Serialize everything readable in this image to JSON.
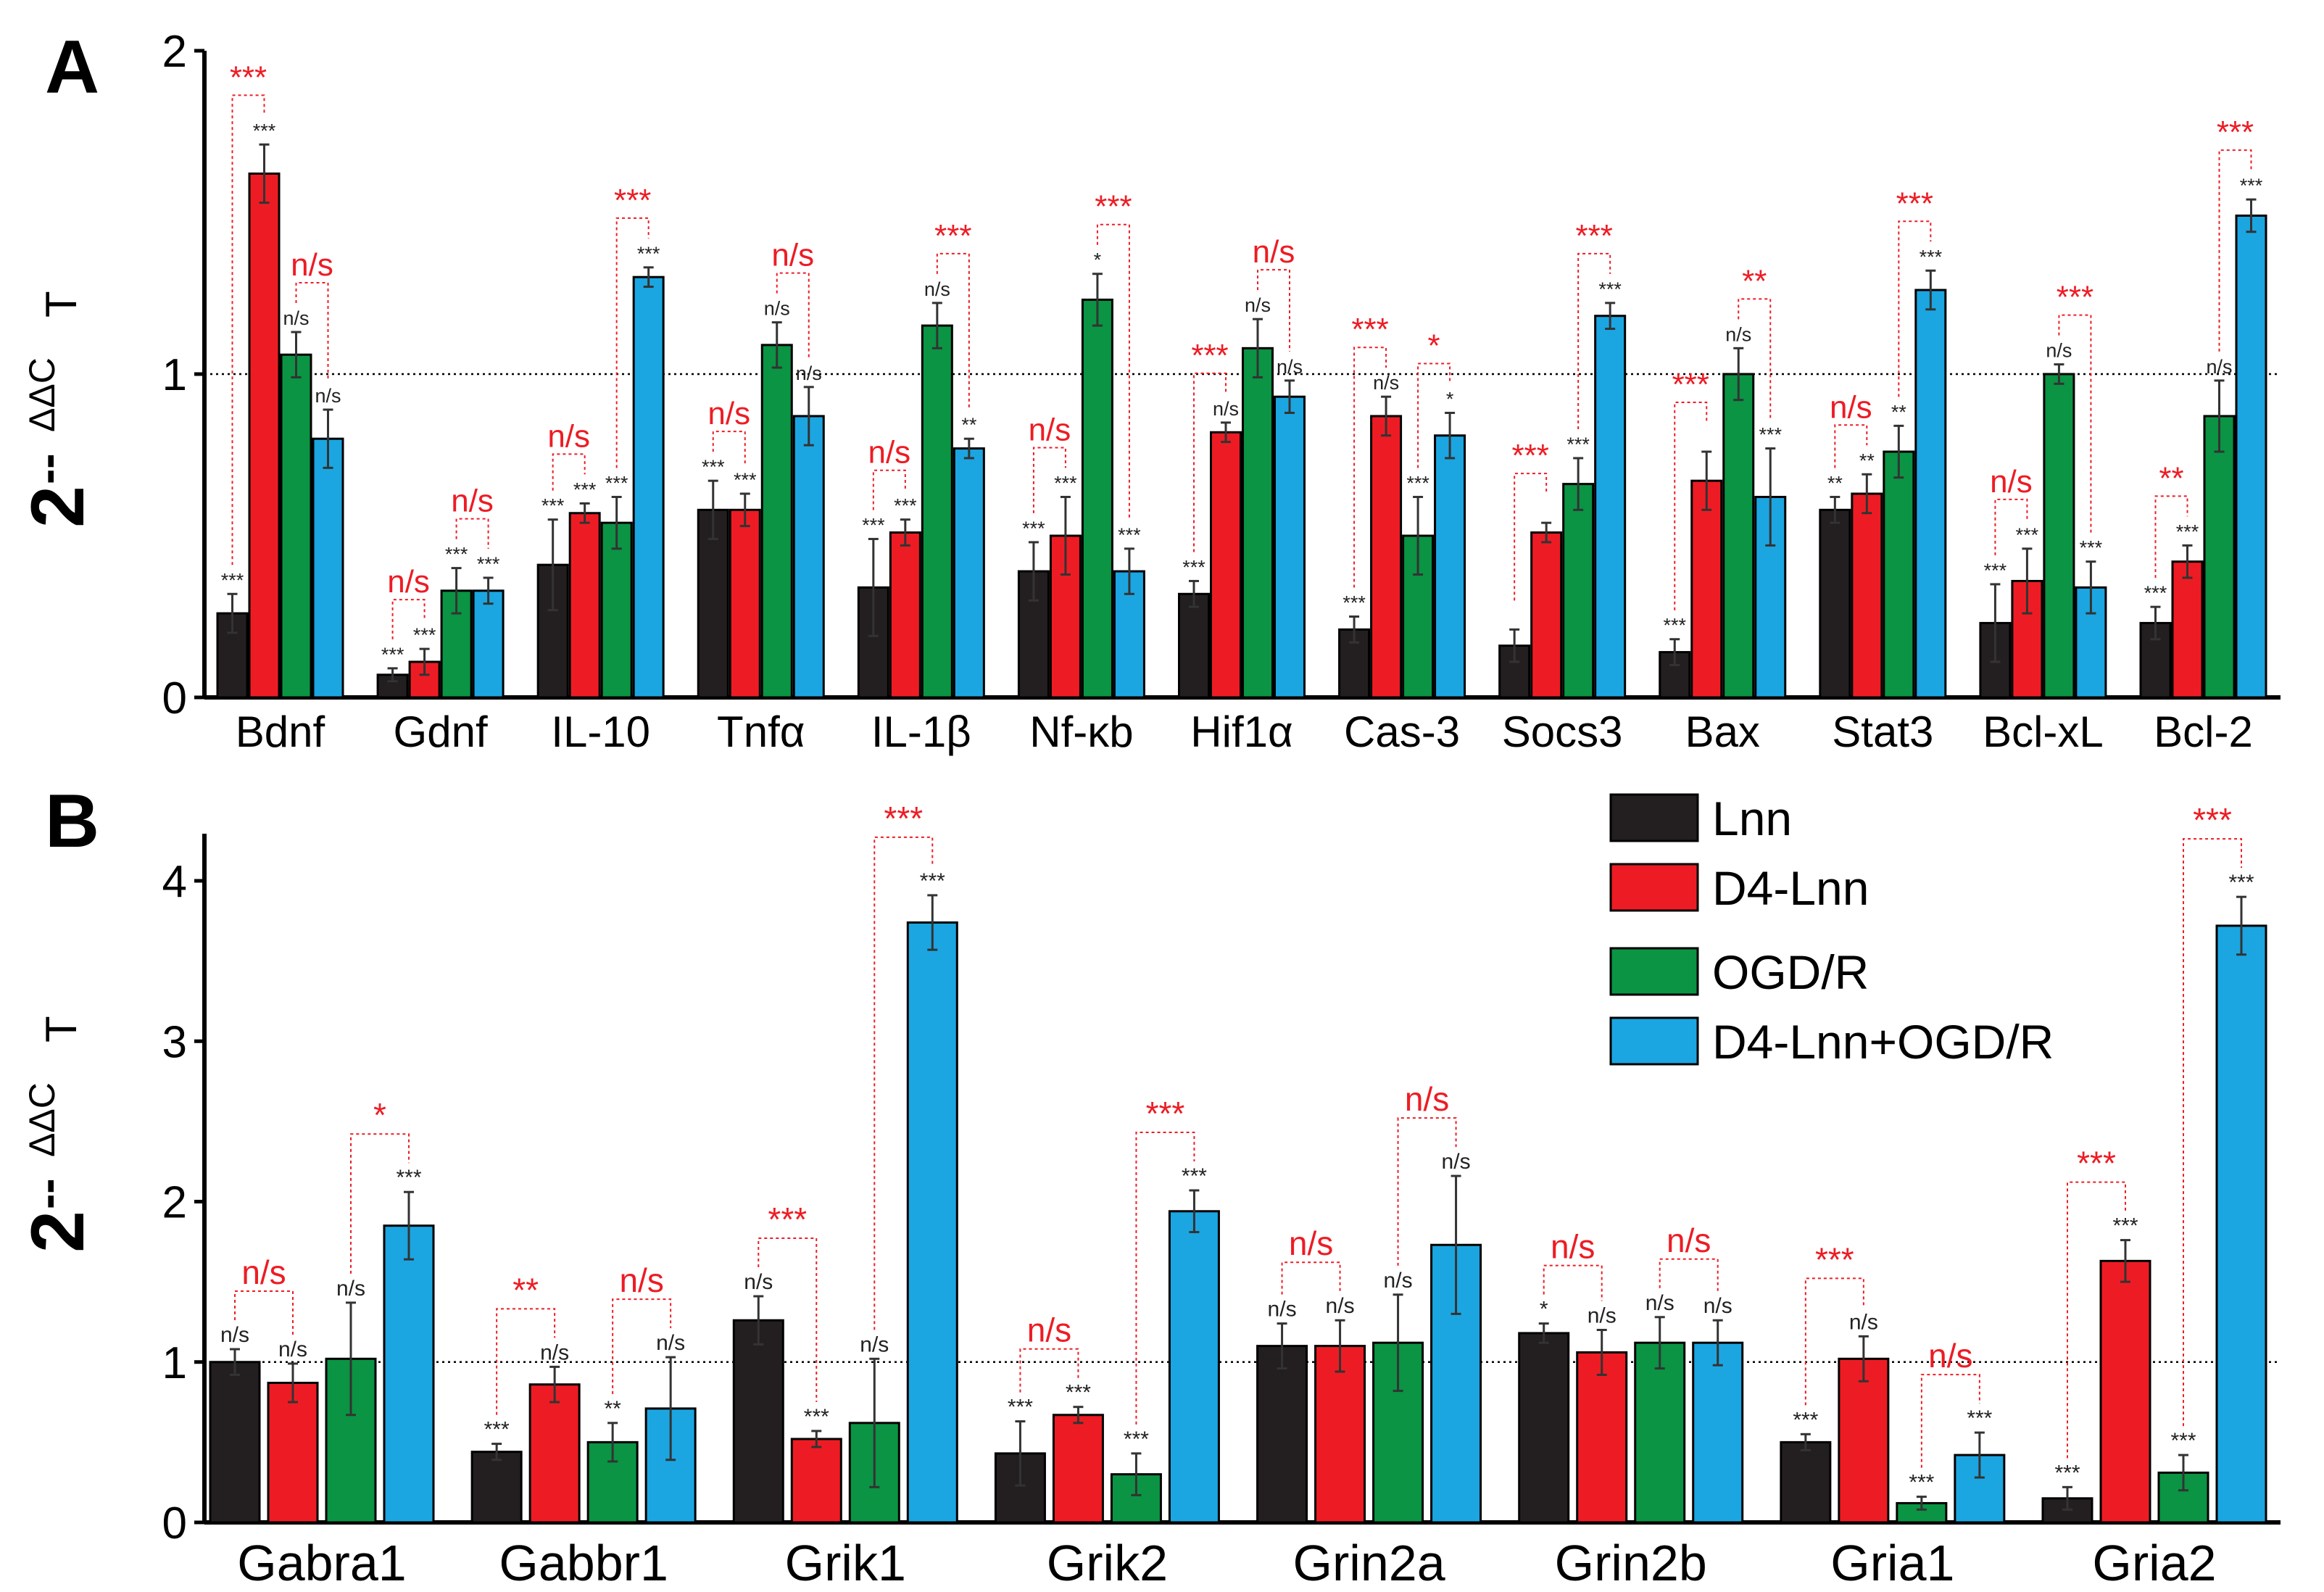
{
  "colors": {
    "Lnn": "#231f20",
    "D4-Lnn": "#ed1c24",
    "OGD/R": "#0a9444",
    "D4-Lnn+OGD/R": "#1ba6e1",
    "annotation": "#ed1c24",
    "axis": "#000000"
  },
  "legend": {
    "placement": "right of panel B, upper",
    "items": [
      {
        "label": "Lnn",
        "color": "#231f20"
      },
      {
        "label": "D4-Lnn",
        "color": "#ed1c24"
      },
      {
        "label": "OGD/R",
        "color": "#0a9444"
      },
      {
        "label": "D4-Lnn+OGD/R",
        "color": "#1ba6e1"
      }
    ]
  },
  "chart_data": [
    {
      "panel_label": "A",
      "type": "bar",
      "ylabel": {
        "base": "2",
        "dashes": "--",
        "sup": "ΔΔC",
        "sub": "T"
      },
      "ylim": [
        0,
        2
      ],
      "yticks": [
        0,
        1,
        2
      ],
      "reference_line": 1,
      "series_names": [
        "Lnn",
        "D4-Lnn",
        "OGD/R",
        "D4-Lnn+OGD/R"
      ],
      "groups": [
        {
          "name": "Bdnf",
          "values": [
            0.26,
            1.62,
            1.06,
            0.8
          ],
          "errors": [
            0.06,
            0.09,
            0.07,
            0.09
          ],
          "stars": [
            "***",
            "***",
            "n/s",
            "n/s"
          ],
          "brackets": [
            {
              "from": 0,
              "to": 1,
              "label": "***"
            },
            {
              "from": 2,
              "to": 3,
              "label": "n/s"
            }
          ]
        },
        {
          "name": "Gdnf",
          "values": [
            0.07,
            0.11,
            0.33,
            0.33
          ],
          "errors": [
            0.02,
            0.04,
            0.07,
            0.04
          ],
          "stars": [
            "***",
            "***",
            "***",
            "***"
          ],
          "brackets": [
            {
              "from": 0,
              "to": 1,
              "label": "n/s"
            },
            {
              "from": 2,
              "to": 3,
              "label": "n/s"
            }
          ]
        },
        {
          "name": "IL-10",
          "values": [
            0.41,
            0.57,
            0.54,
            1.3
          ],
          "errors": [
            0.14,
            0.03,
            0.08,
            0.03
          ],
          "stars": [
            "***",
            "***",
            "***",
            "***"
          ],
          "brackets": [
            {
              "from": 0,
              "to": 1,
              "label": "n/s"
            },
            {
              "from": 2,
              "to": 3,
              "label": "***"
            }
          ]
        },
        {
          "name": "Tnfα",
          "values": [
            0.58,
            0.58,
            1.09,
            0.87
          ],
          "errors": [
            0.09,
            0.05,
            0.07,
            0.09
          ],
          "stars": [
            "***",
            "***",
            "n/s",
            "n/s"
          ],
          "brackets": [
            {
              "from": 0,
              "to": 1,
              "label": "n/s"
            },
            {
              "from": 2,
              "to": 3,
              "label": "n/s"
            }
          ]
        },
        {
          "name": "IL-1β",
          "values": [
            0.34,
            0.51,
            1.15,
            0.77
          ],
          "errors": [
            0.15,
            0.04,
            0.07,
            0.03
          ],
          "stars": [
            "***",
            "***",
            "n/s",
            "**"
          ],
          "brackets": [
            {
              "from": 0,
              "to": 1,
              "label": "n/s"
            },
            {
              "from": 2,
              "to": 3,
              "label": "***"
            }
          ]
        },
        {
          "name": "Nf-κb",
          "values": [
            0.39,
            0.5,
            1.23,
            0.39
          ],
          "errors": [
            0.09,
            0.12,
            0.08,
            0.07
          ],
          "stars": [
            "***",
            "***",
            "*",
            "***"
          ],
          "brackets": [
            {
              "from": 0,
              "to": 1,
              "label": "n/s"
            },
            {
              "from": 2,
              "to": 3,
              "label": "***"
            }
          ]
        },
        {
          "name": "Hif1α",
          "values": [
            0.32,
            0.82,
            1.08,
            0.93
          ],
          "errors": [
            0.04,
            0.03,
            0.09,
            0.05
          ],
          "stars": [
            "***",
            "n/s",
            "n/s",
            "n/s"
          ],
          "brackets": [
            {
              "from": 0,
              "to": 1,
              "label": "***"
            },
            {
              "from": 2,
              "to": 3,
              "label": "n/s"
            }
          ]
        },
        {
          "name": "Cas-3",
          "values": [
            0.21,
            0.87,
            0.5,
            0.81
          ],
          "errors": [
            0.04,
            0.06,
            0.12,
            0.07
          ],
          "stars": [
            "***",
            "n/s",
            "***",
            "*"
          ],
          "brackets": [
            {
              "from": 0,
              "to": 1,
              "label": "***"
            },
            {
              "from": 2,
              "to": 3,
              "label": "*"
            }
          ]
        },
        {
          "name": "Socs3",
          "values": [
            0.16,
            0.51,
            0.66,
            1.18
          ],
          "errors": [
            0.05,
            0.03,
            0.08,
            0.04
          ],
          "stars": [
            "",
            "",
            "***",
            "***"
          ],
          "brackets": [
            {
              "from": 0,
              "to": 1,
              "label": "***"
            },
            {
              "from": 2,
              "to": 3,
              "label": "***"
            }
          ]
        },
        {
          "name": "Bax",
          "values": [
            0.14,
            0.67,
            1.0,
            0.62
          ],
          "errors": [
            0.04,
            0.09,
            0.08,
            0.15
          ],
          "stars": [
            "***",
            "",
            "n/s",
            "***"
          ],
          "brackets": [
            {
              "from": 0,
              "to": 1,
              "label": "***"
            },
            {
              "from": 2,
              "to": 3,
              "label": "**"
            }
          ]
        },
        {
          "name": "Stat3",
          "values": [
            0.58,
            0.63,
            0.76,
            1.26
          ],
          "errors": [
            0.04,
            0.06,
            0.08,
            0.06
          ],
          "stars": [
            "**",
            "**",
            "**",
            "***"
          ],
          "brackets": [
            {
              "from": 0,
              "to": 1,
              "label": "n/s"
            },
            {
              "from": 2,
              "to": 3,
              "label": "***"
            }
          ]
        },
        {
          "name": "Bcl-xL",
          "values": [
            0.23,
            0.36,
            1.0,
            0.34
          ],
          "errors": [
            0.12,
            0.1,
            0.03,
            0.08
          ],
          "stars": [
            "***",
            "***",
            "n/s",
            "***"
          ],
          "brackets": [
            {
              "from": 0,
              "to": 1,
              "label": "n/s"
            },
            {
              "from": 2,
              "to": 3,
              "label": "***"
            }
          ]
        },
        {
          "name": "Bcl-2",
          "values": [
            0.23,
            0.42,
            0.87,
            1.49
          ],
          "errors": [
            0.05,
            0.05,
            0.11,
            0.05
          ],
          "stars": [
            "***",
            "***",
            "n/s",
            "***"
          ],
          "brackets": [
            {
              "from": 0,
              "to": 1,
              "label": "**"
            },
            {
              "from": 2,
              "to": 3,
              "label": "***"
            }
          ]
        }
      ]
    },
    {
      "panel_label": "B",
      "type": "bar",
      "ylabel": {
        "base": "2",
        "dashes": "--",
        "sup": "ΔΔC",
        "sub": "T"
      },
      "ylim": [
        0,
        4.2
      ],
      "yticks": [
        0,
        1,
        2,
        3,
        4
      ],
      "reference_line": 1,
      "series_names": [
        "Lnn",
        "D4-Lnn",
        "OGD/R",
        "D4-Lnn+OGD/R"
      ],
      "groups": [
        {
          "name": "Gabra1",
          "values": [
            1.0,
            0.87,
            1.02,
            1.85
          ],
          "errors": [
            0.08,
            0.12,
            0.35,
            0.21
          ],
          "stars": [
            "n/s",
            "n/s",
            "n/s",
            "***"
          ],
          "brackets": [
            {
              "from": 0,
              "to": 1,
              "label": "n/s"
            },
            {
              "from": 2,
              "to": 3,
              "label": "*"
            }
          ]
        },
        {
          "name": "Gabbr1",
          "values": [
            0.44,
            0.86,
            0.5,
            0.71
          ],
          "errors": [
            0.05,
            0.11,
            0.12,
            0.32
          ],
          "stars": [
            "***",
            "n/s",
            "**",
            "n/s"
          ],
          "brackets": [
            {
              "from": 0,
              "to": 1,
              "label": "**"
            },
            {
              "from": 2,
              "to": 3,
              "label": "n/s"
            }
          ]
        },
        {
          "name": "Grik1",
          "values": [
            1.26,
            0.52,
            0.62,
            3.74
          ],
          "errors": [
            0.15,
            0.05,
            0.4,
            0.17
          ],
          "stars": [
            "n/s",
            "***",
            "n/s",
            "***"
          ],
          "brackets": [
            {
              "from": 0,
              "to": 1,
              "label": "***"
            },
            {
              "from": 2,
              "to": 3,
              "label": "***"
            }
          ]
        },
        {
          "name": "Grik2",
          "values": [
            0.43,
            0.67,
            0.3,
            1.94
          ],
          "errors": [
            0.2,
            0.05,
            0.13,
            0.13
          ],
          "stars": [
            "***",
            "***",
            "***",
            "***"
          ],
          "brackets": [
            {
              "from": 0,
              "to": 1,
              "label": "n/s"
            },
            {
              "from": 2,
              "to": 3,
              "label": "***"
            }
          ]
        },
        {
          "name": "Grin2a",
          "values": [
            1.1,
            1.1,
            1.12,
            1.73
          ],
          "errors": [
            0.14,
            0.16,
            0.3,
            0.43
          ],
          "stars": [
            "n/s",
            "n/s",
            "n/s",
            "n/s"
          ],
          "brackets": [
            {
              "from": 0,
              "to": 1,
              "label": "n/s"
            },
            {
              "from": 2,
              "to": 3,
              "label": "n/s"
            }
          ]
        },
        {
          "name": "Grin2b",
          "values": [
            1.18,
            1.06,
            1.12,
            1.12
          ],
          "errors": [
            0.06,
            0.14,
            0.16,
            0.14
          ],
          "stars": [
            "*",
            "n/s",
            "n/s",
            "n/s"
          ],
          "brackets": [
            {
              "from": 0,
              "to": 1,
              "label": "n/s"
            },
            {
              "from": 2,
              "to": 3,
              "label": "n/s"
            }
          ]
        },
        {
          "name": "Gria1",
          "values": [
            0.5,
            1.02,
            0.12,
            0.42
          ],
          "errors": [
            0.05,
            0.14,
            0.04,
            0.14
          ],
          "stars": [
            "***",
            "n/s",
            "***",
            "***"
          ],
          "brackets": [
            {
              "from": 0,
              "to": 1,
              "label": "***"
            },
            {
              "from": 2,
              "to": 3,
              "label": "n/s"
            }
          ]
        },
        {
          "name": "Gria2",
          "values": [
            0.15,
            1.63,
            0.31,
            3.72
          ],
          "errors": [
            0.07,
            0.13,
            0.11,
            0.18
          ],
          "stars": [
            "***",
            "***",
            "***",
            "***"
          ],
          "brackets": [
            {
              "from": 0,
              "to": 1,
              "label": "***"
            },
            {
              "from": 2,
              "to": 3,
              "label": "***"
            }
          ]
        }
      ]
    }
  ]
}
